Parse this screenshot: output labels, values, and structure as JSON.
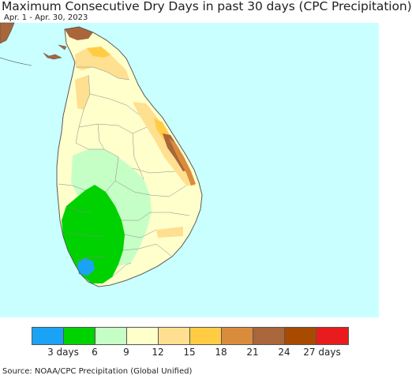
{
  "title": "Maximum Consecutive Dry Days in past 30 days (CPC Precipitation)",
  "subtitle": "Apr. 1 - Apr. 30, 2023",
  "source": "Source: NOAA/CPC Precipitation (Global Unified)",
  "colors": {
    "ocean": "#c9ffff",
    "land_border": "#555555"
  },
  "legend": {
    "colors": [
      "#1aa3f5",
      "#00d100",
      "#c6ffc6",
      "#ffffcc",
      "#ffdf90",
      "#ffcc44",
      "#d98c3c",
      "#a8663a",
      "#a84a00",
      "#e81c1c"
    ],
    "ticks": [
      "3 days",
      "6",
      "9",
      "12",
      "15",
      "18",
      "21",
      "24",
      "27 days"
    ]
  }
}
